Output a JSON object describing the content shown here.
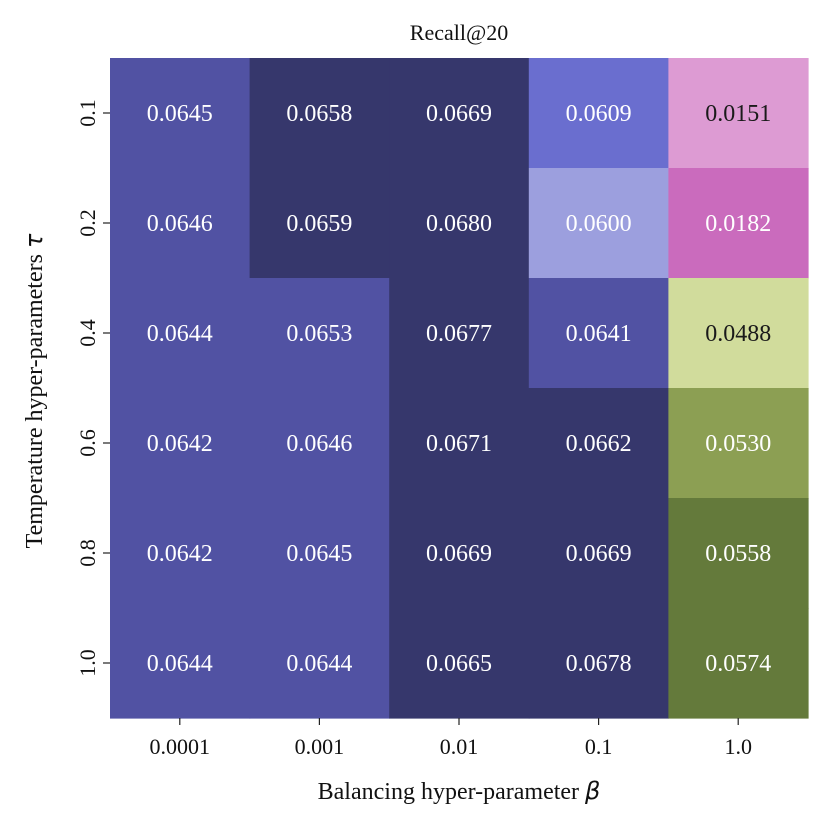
{
  "chart_data": {
    "type": "heatmap",
    "title": "Recall@20",
    "xlabel": "Balancing hyper-parameter",
    "xlabel_symbol": "β",
    "ylabel": "Temperature hyper-parameters",
    "ylabel_symbol": "τ",
    "x_categories": [
      "0.0001",
      "0.001",
      "0.01",
      "0.1",
      "1.0"
    ],
    "y_categories": [
      "0.1",
      "0.2",
      "0.4",
      "0.6",
      "0.8",
      "1.0"
    ],
    "values": [
      [
        0.0645,
        0.0658,
        0.0669,
        0.0609,
        0.0151
      ],
      [
        0.0646,
        0.0659,
        0.068,
        0.06,
        0.0182
      ],
      [
        0.0644,
        0.0653,
        0.0677,
        0.0641,
        0.0488
      ],
      [
        0.0642,
        0.0646,
        0.0671,
        0.0662,
        0.053
      ],
      [
        0.0642,
        0.0645,
        0.0669,
        0.0669,
        0.0558
      ],
      [
        0.0644,
        0.0644,
        0.0665,
        0.0678,
        0.0574
      ]
    ],
    "labels": [
      [
        "0.0645",
        "0.0658",
        "0.0669",
        "0.0609",
        "0.0151"
      ],
      [
        "0.0646",
        "0.0659",
        "0.0680",
        "0.0600",
        "0.0182"
      ],
      [
        "0.0644",
        "0.0653",
        "0.0677",
        "0.0641",
        "0.0488"
      ],
      [
        "0.0642",
        "0.0646",
        "0.0671",
        "0.0662",
        "0.0530"
      ],
      [
        "0.0642",
        "0.0645",
        "0.0669",
        "0.0669",
        "0.0558"
      ],
      [
        "0.0644",
        "0.0644",
        "0.0665",
        "0.0678",
        "0.0574"
      ]
    ],
    "cell_colors": [
      [
        "#5152a3",
        "#36376c",
        "#36376c",
        "#6a6ecf",
        "#dd9bd3"
      ],
      [
        "#5152a3",
        "#36376c",
        "#36376c",
        "#9c9fde",
        "#ca6bbd"
      ],
      [
        "#5152a3",
        "#5152a3",
        "#36376c",
        "#5152a3",
        "#d1dc9c"
      ],
      [
        "#5152a3",
        "#5152a3",
        "#36376c",
        "#36376c",
        "#8c9f53"
      ],
      [
        "#5152a3",
        "#5152a3",
        "#36376c",
        "#36376c",
        "#647a3b"
      ],
      [
        "#5152a3",
        "#5152a3",
        "#36376c",
        "#36376c",
        "#647a3b"
      ]
    ],
    "dark_text_cells": [
      [
        0,
        4
      ],
      [
        2,
        4
      ]
    ],
    "grid": false,
    "legend": "none"
  }
}
